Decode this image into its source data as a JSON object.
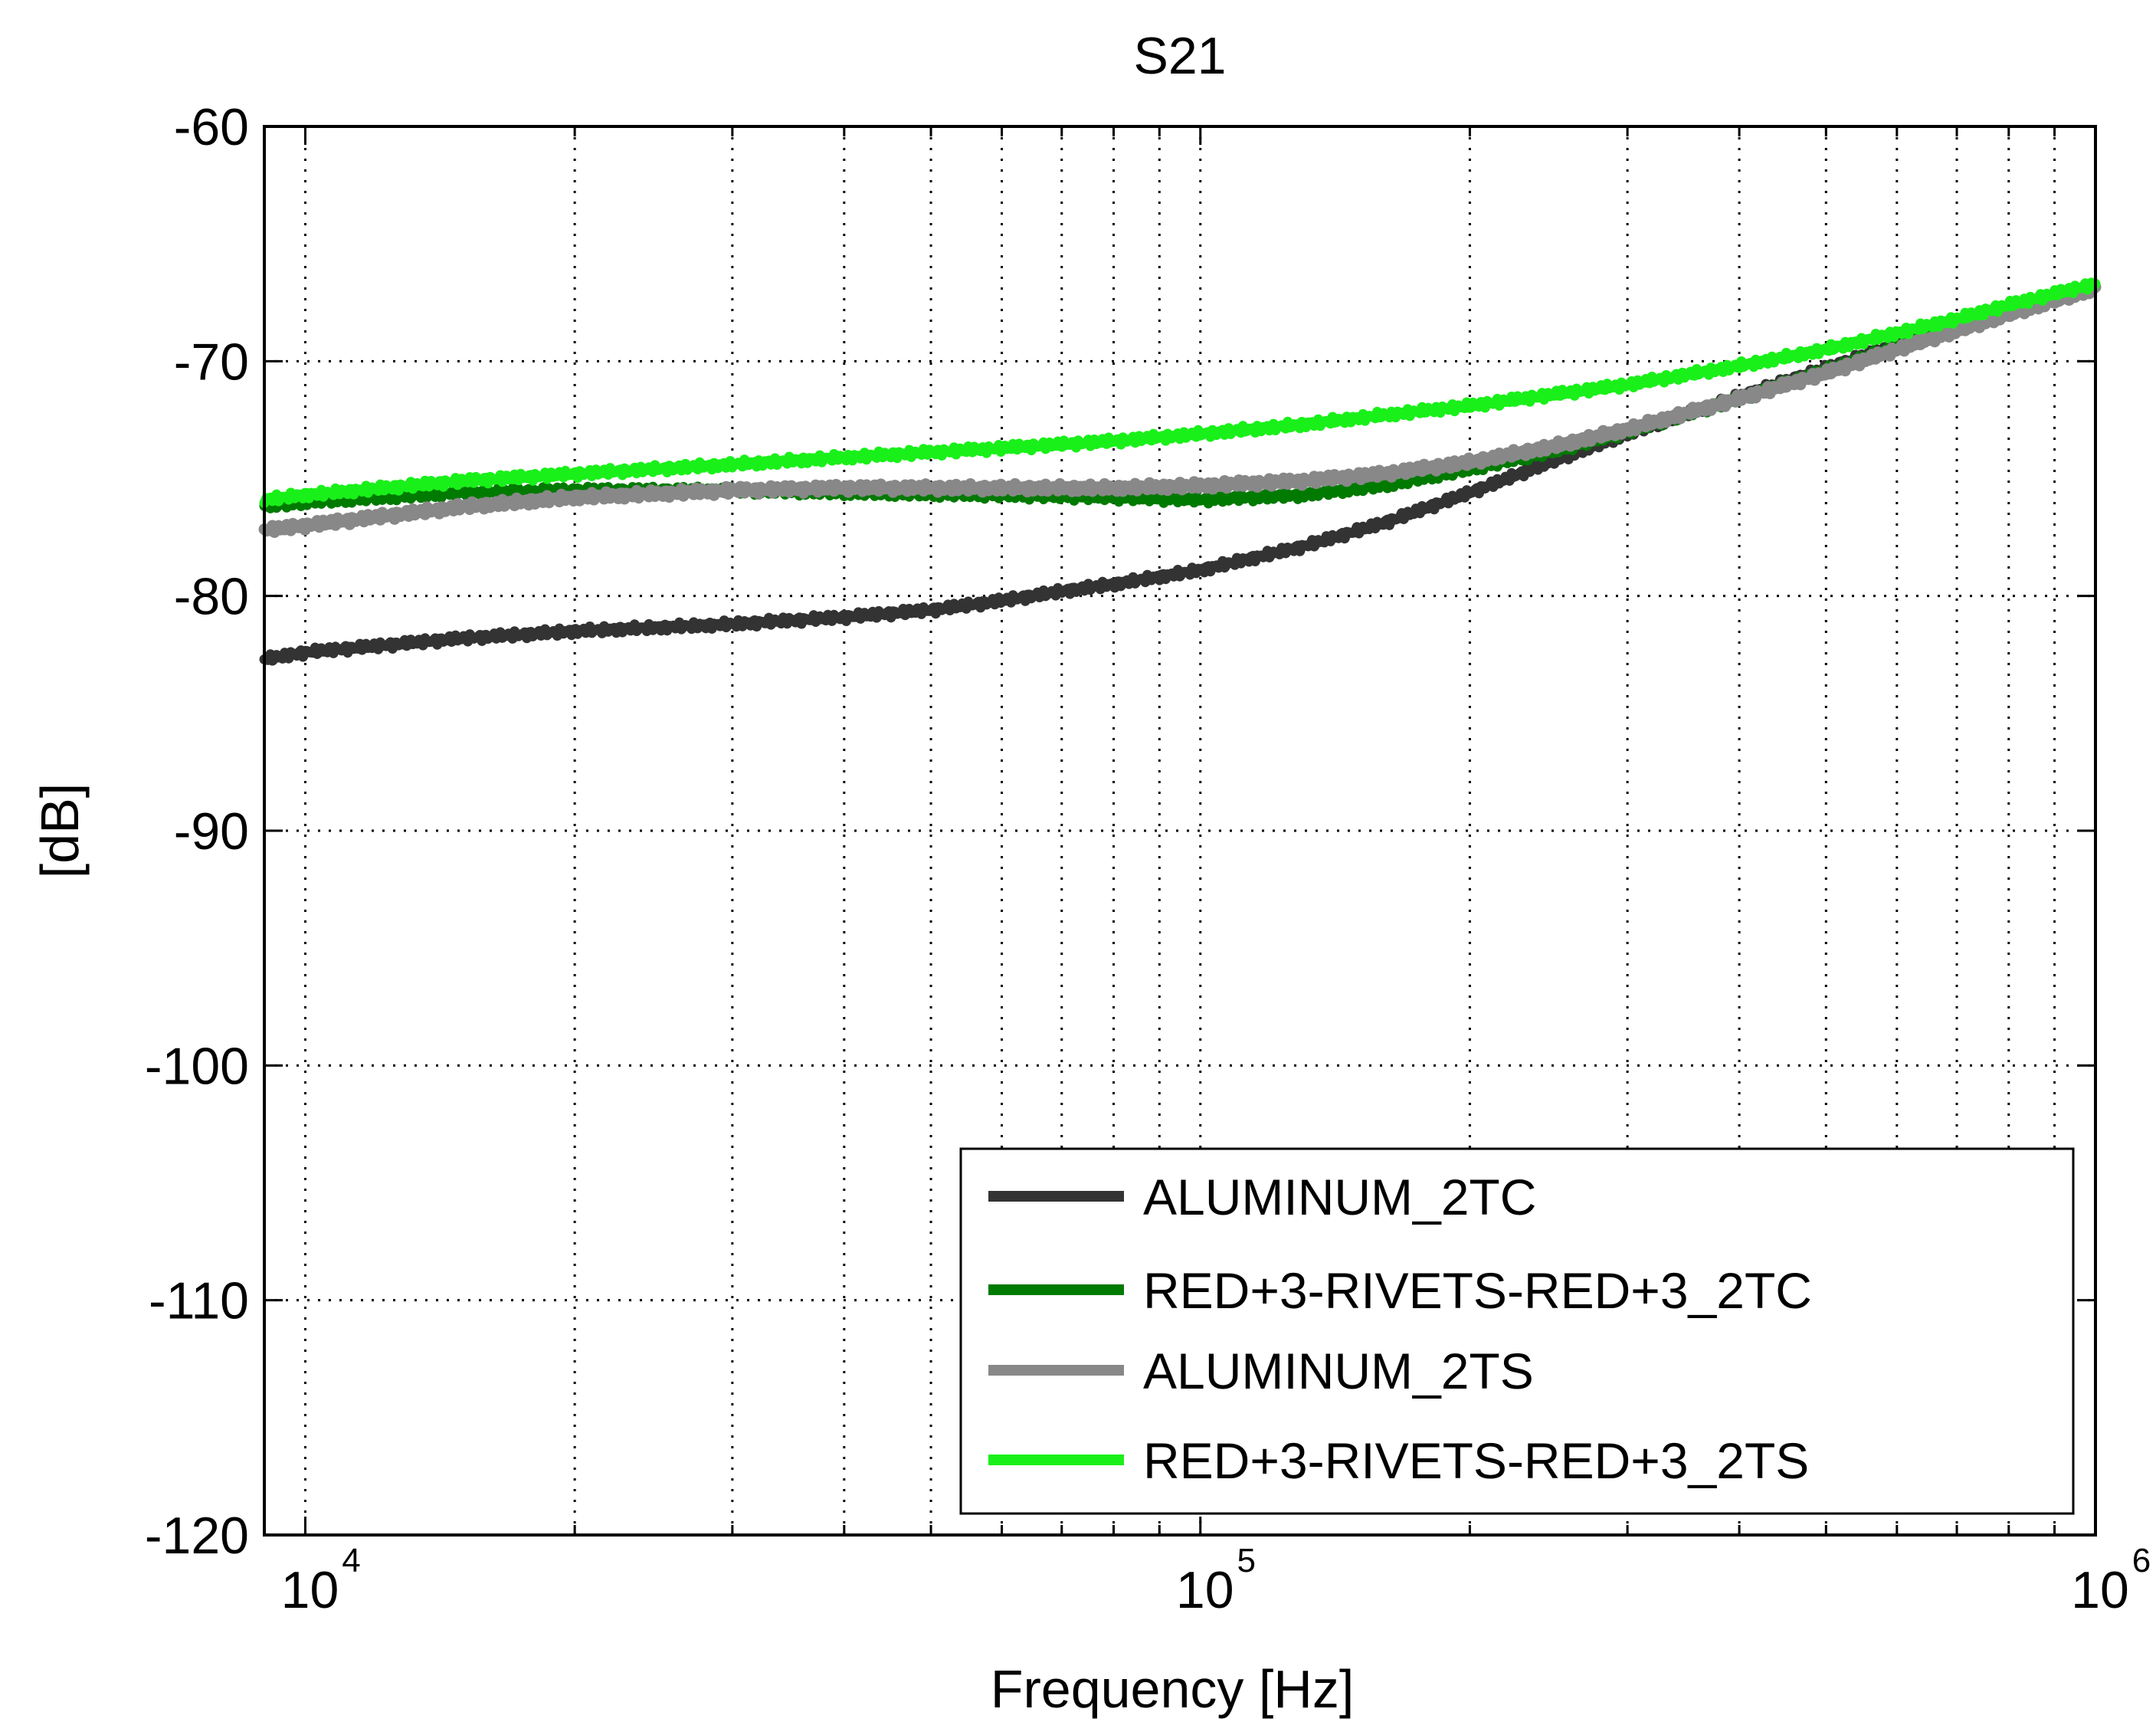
{
  "chart_data": {
    "type": "line",
    "title": "S21",
    "xlabel": "Frequency [Hz]",
    "ylabel": "[dB]",
    "xscale": "log",
    "xlim": [
      9000,
      1000000
    ],
    "ylim": [
      -120,
      -60
    ],
    "grid": true,
    "legend_position": "bottom-right",
    "x_ticks": [
      {
        "value": 10000,
        "base": "10",
        "exp": "4"
      },
      {
        "value": 100000,
        "base": "10",
        "exp": "5"
      },
      {
        "value": 1000000,
        "base": "10",
        "exp": "6"
      }
    ],
    "y_ticks": [
      {
        "value": -60,
        "label": "-60"
      },
      {
        "value": -70,
        "label": "-70"
      },
      {
        "value": -80,
        "label": "-80"
      },
      {
        "value": -90,
        "label": "-90"
      },
      {
        "value": -100,
        "label": "-100"
      },
      {
        "value": -110,
        "label": "-110"
      },
      {
        "value": -120,
        "label": "-120"
      }
    ],
    "series": [
      {
        "name": "ALUMINUM_2TC",
        "color": "#333333",
        "x": [
          9000,
          10000,
          15000,
          20000,
          30000,
          40000,
          50000,
          60000,
          70000,
          80000,
          100000,
          130000,
          160000,
          200000,
          250000,
          300000,
          400000,
          500000,
          600000,
          700000,
          800000,
          1000000
        ],
        "y": [
          -82.7,
          -82.4,
          -81.8,
          -81.5,
          -81.2,
          -80.9,
          -80.6,
          -80.2,
          -79.8,
          -79.5,
          -78.9,
          -77.9,
          -76.9,
          -75.6,
          -74.2,
          -73.1,
          -71.5,
          -70.3,
          -69.3,
          -68.5,
          -67.9,
          -66.8
        ]
      },
      {
        "name": "RED+3-RIVETS-RED+3_2TC",
        "color": "#007a00",
        "x": [
          9000,
          10000,
          15000,
          20000,
          30000,
          40000,
          60000,
          80000,
          100000,
          130000,
          160000,
          200000,
          250000,
          300000,
          400000,
          500000,
          600000,
          700000,
          800000,
          1000000
        ],
        "y": [
          -76.2,
          -76.0,
          -75.6,
          -75.5,
          -75.5,
          -75.6,
          -75.7,
          -75.8,
          -75.9,
          -75.7,
          -75.3,
          -74.6,
          -73.8,
          -73.0,
          -71.6,
          -70.4,
          -69.4,
          -68.6,
          -67.9,
          -66.8
        ]
      },
      {
        "name": "ALUMINUM_2TS",
        "color": "#888888",
        "x": [
          9000,
          10000,
          15000,
          20000,
          30000,
          40000,
          60000,
          80000,
          100000,
          130000,
          160000,
          200000,
          250000,
          300000,
          400000,
          500000,
          600000,
          700000,
          800000,
          1000000
        ],
        "y": [
          -77.2,
          -77.0,
          -76.2,
          -75.8,
          -75.5,
          -75.4,
          -75.4,
          -75.4,
          -75.3,
          -75.1,
          -74.8,
          -74.3,
          -73.6,
          -72.9,
          -71.6,
          -70.5,
          -69.5,
          -68.7,
          -68.0,
          -66.9
        ]
      },
      {
        "name": "RED+3-RIVETS-RED+3_2TS",
        "color": "#19f019",
        "x": [
          9000,
          10000,
          15000,
          20000,
          30000,
          40000,
          60000,
          80000,
          100000,
          130000,
          160000,
          200000,
          250000,
          300000,
          400000,
          500000,
          600000,
          700000,
          800000,
          1000000
        ],
        "y": [
          -75.9,
          -75.7,
          -75.1,
          -74.8,
          -74.4,
          -74.1,
          -73.7,
          -73.4,
          -73.1,
          -72.7,
          -72.3,
          -71.9,
          -71.4,
          -71.0,
          -70.2,
          -69.5,
          -68.8,
          -68.2,
          -67.6,
          -66.7
        ]
      }
    ]
  }
}
